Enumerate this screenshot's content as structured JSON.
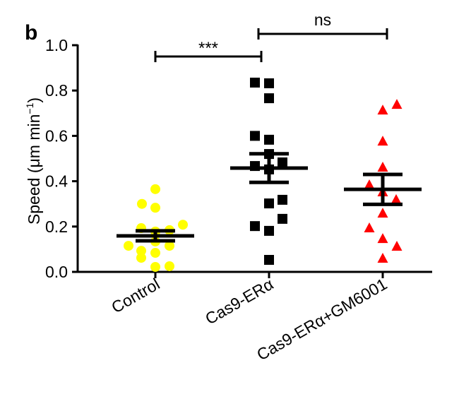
{
  "panel_label": "b",
  "chart_data": {
    "type": "scatter",
    "title": "",
    "xlabel": "",
    "ylabel": "Speed (μm min⁻¹)",
    "ylabel_main": "Speed (μm min",
    "ylabel_sup": "−1",
    "ylabel_close": ")",
    "ylim": [
      0,
      1.0
    ],
    "yticks": [
      "0.0",
      "0.2",
      "0.4",
      "0.6",
      "0.8",
      "1.0"
    ],
    "ytick_values": [
      0,
      0.2,
      0.4,
      0.6,
      0.8,
      1.0
    ],
    "categories": [
      "Control",
      "Cas9-ERα",
      "Cas9-ERα+GM6001"
    ],
    "grid": false,
    "series": [
      {
        "name": "Control",
        "marker": "circle",
        "color": "#FFFF00",
        "values": [
          0.365,
          0.3,
          0.283,
          0.208,
          0.193,
          0.184,
          0.178,
          0.134,
          0.115,
          0.115,
          0.093,
          0.084,
          0.062,
          0.025,
          0.022
        ],
        "mean": 0.159,
        "sem": 0.022
      },
      {
        "name": "Cas9-ERα",
        "marker": "square",
        "color": "#000000",
        "values": [
          0.835,
          0.832,
          0.766,
          0.6,
          0.583,
          0.52,
          0.483,
          0.467,
          0.452,
          0.318,
          0.302,
          0.234,
          0.202,
          0.181,
          0.053
        ],
        "mean": 0.458,
        "sem": 0.063
      },
      {
        "name": "Cas9-ERα+GM6001",
        "marker": "triangle",
        "color": "#FF0000",
        "values": [
          0.738,
          0.713,
          0.576,
          0.461,
          0.383,
          0.352,
          0.318,
          0.258,
          0.193,
          0.146,
          0.112,
          0.059
        ],
        "mean": 0.364,
        "sem": 0.066
      }
    ],
    "annotations": [
      {
        "text": "***",
        "from": "Control",
        "to": "Cas9-ERα",
        "level": 0.95
      },
      {
        "text": "ns",
        "from": "Cas9-ERα",
        "to": "Cas9-ERα+GM6001",
        "level": 1.05
      }
    ]
  }
}
